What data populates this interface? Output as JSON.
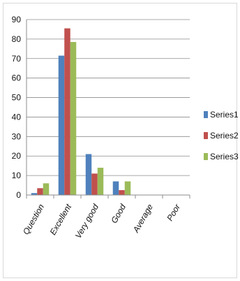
{
  "chart_data": {
    "type": "bar",
    "categories": [
      "Question",
      "Excellent",
      "Very good",
      "Good",
      "Average",
      "Poor"
    ],
    "series": [
      {
        "name": "Series1",
        "color": "#4F81BD",
        "values": [
          1,
          71.5,
          21,
          7,
          0,
          0
        ]
      },
      {
        "name": "Series2",
        "color": "#C0504D",
        "values": [
          3.5,
          85.5,
          11,
          2.5,
          0,
          0
        ]
      },
      {
        "name": "Series3",
        "color": "#9BBB59",
        "values": [
          6,
          78.5,
          14,
          7,
          0,
          0
        ]
      }
    ],
    "ylim": [
      0,
      90
    ],
    "yticks": [
      "0",
      "10",
      "20",
      "30",
      "40",
      "50",
      "60",
      "70",
      "80",
      "90"
    ],
    "grid": true,
    "legend": "right"
  }
}
